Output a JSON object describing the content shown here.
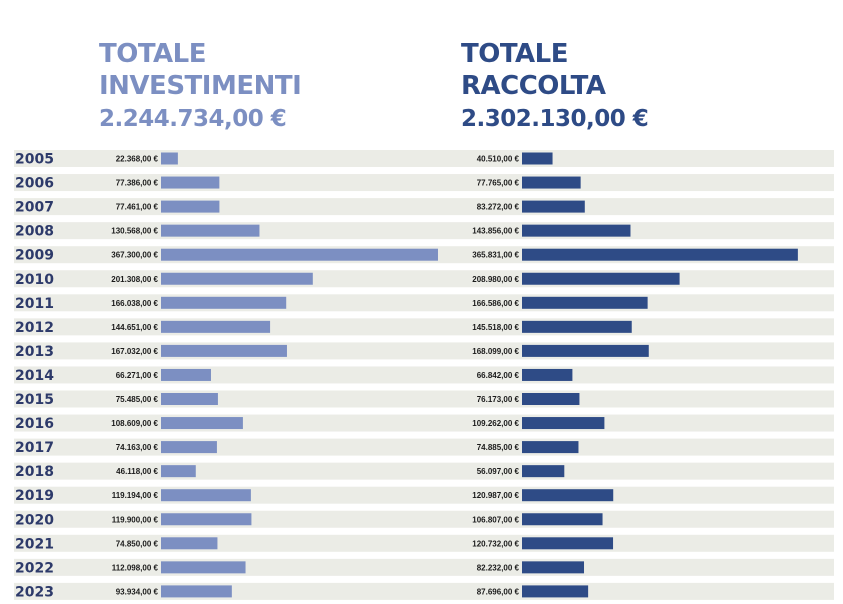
{
  "header": {
    "investimenti": {
      "title_line1": "TOTALE",
      "title_line2": "INVESTIMENTI",
      "total": "2.244.734,00 €"
    },
    "raccolta": {
      "title_line1": "TOTALE",
      "title_line2": "RACCOLTA",
      "total": "2.302.130,00 €"
    }
  },
  "colors": {
    "investimenti": "#7c8fc2",
    "raccolta": "#2e4b86",
    "row_bg": "#ebece6",
    "year_text": "#2d3a6a"
  },
  "chart_data": {
    "type": "bar",
    "orientation": "horizontal",
    "categories": [
      "2005",
      "2006",
      "2007",
      "2008",
      "2009",
      "2010",
      "2011",
      "2012",
      "2013",
      "2014",
      "2015",
      "2016",
      "2017",
      "2018",
      "2019",
      "2020",
      "2021",
      "2022",
      "2023"
    ],
    "series": [
      {
        "name": "TOTALE INVESTIMENTI",
        "values": [
          22368,
          77386,
          77461,
          130568,
          367300,
          201308,
          166038,
          144651,
          167032,
          66271,
          75485,
          108609,
          74163,
          46118,
          119194,
          119900,
          74850,
          112098,
          93934
        ],
        "labels": [
          "22.368,00 €",
          "77.386,00 €",
          "77.461,00 €",
          "130.568,00 €",
          "367.300,00 €",
          "201.308,00 €",
          "166.038,00 €",
          "144.651,00 €",
          "167.032,00 €",
          "66.271,00 €",
          "75.485,00 €",
          "108.609,00 €",
          "74.163,00 €",
          "46.118,00 €",
          "119.194,00 €",
          "119.900,00 €",
          "74.850,00 €",
          "112.098,00 €",
          "93.934,00 €"
        ]
      },
      {
        "name": "TOTALE RACCOLTA",
        "values": [
          40510,
          77765,
          83272,
          143856,
          365831,
          208980,
          166586,
          145518,
          168099,
          66842,
          76173,
          109262,
          74885,
          56097,
          120987,
          106807,
          120732,
          82232,
          87696
        ],
        "labels": [
          "40.510,00 €",
          "77.765,00 €",
          "83.272,00 €",
          "143.856,00 €",
          "365.831,00 €",
          "208.980,00 €",
          "166.586,00 €",
          "145.518,00 €",
          "168.099,00 €",
          "66.842,00 €",
          "76.173,00 €",
          "109.262,00 €",
          "74.885,00 €",
          "56.097,00 €",
          "120.987,00 €",
          "106.807,00 €",
          "120.732,00 €",
          "82.232,00 €",
          "87.696,00 €"
        ]
      }
    ]
  }
}
